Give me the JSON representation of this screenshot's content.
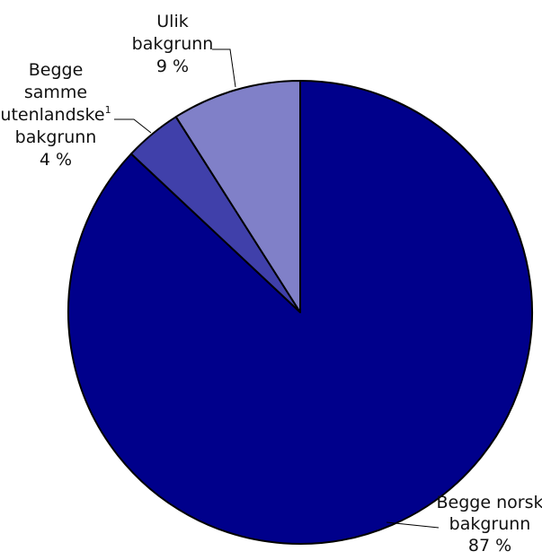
{
  "chart_data": {
    "type": "pie",
    "title": "",
    "start_angle_deg": 0,
    "direction": "clockwise",
    "slices": [
      {
        "name": "Begge norsk bakgrunn",
        "value": 87,
        "value_label": "87 %",
        "label_lines": [
          "Begge norsk",
          "bakgrunn"
        ],
        "superscript": "",
        "color": "#00008B"
      },
      {
        "name": "Begge samme utenlandske bakgrunn",
        "value": 4,
        "value_label": "4 %",
        "label_lines": [
          "Begge",
          "samme",
          "utenlandske",
          "bakgrunn"
        ],
        "superscript": "1",
        "color": "#4040AA"
      },
      {
        "name": "Ulik bakgrunn",
        "value": 9,
        "value_label": "9 %",
        "label_lines": [
          "Ulik",
          "bakgrunn"
        ],
        "superscript": "",
        "color": "#8080C8"
      }
    ]
  }
}
